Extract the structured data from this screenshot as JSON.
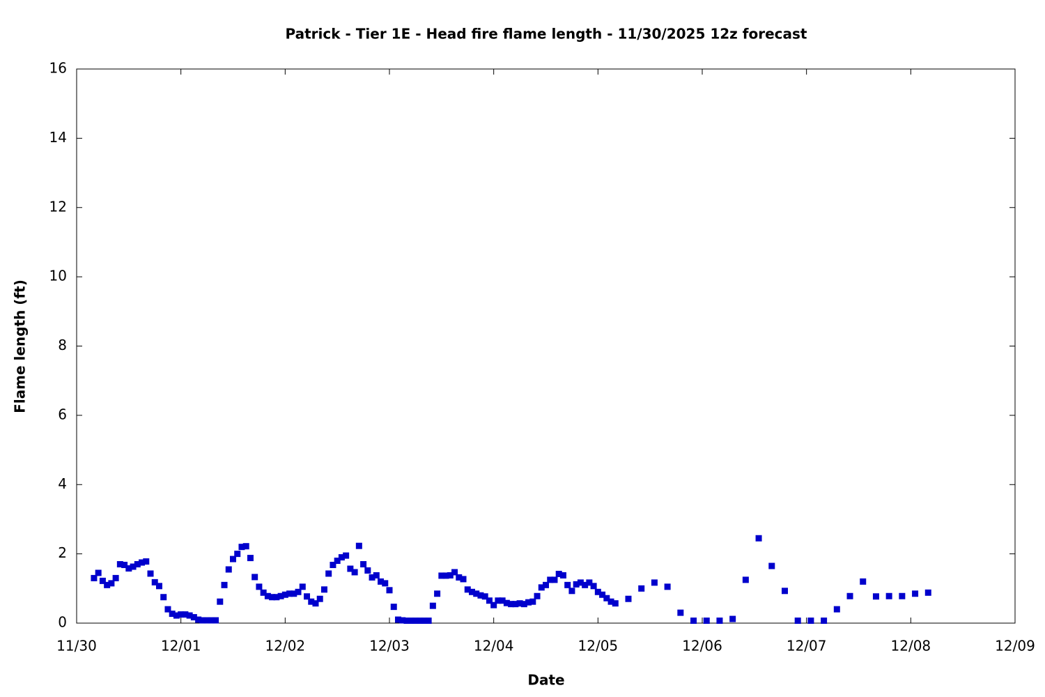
{
  "chart_data": {
    "type": "scatter",
    "title": "Patrick - Tier 1E - Head fire flame length - 11/30/2025 12z forecast",
    "x_label": "Date",
    "y_label": "Flame length (ft)",
    "color": "#0000cc",
    "grid": false,
    "xlim": [
      0,
      216
    ],
    "xticks": [
      {
        "value": 0,
        "label": "11/30"
      },
      {
        "value": 24,
        "label": "12/01"
      },
      {
        "value": 48,
        "label": "12/02"
      },
      {
        "value": 72,
        "label": "12/03"
      },
      {
        "value": 96,
        "label": "12/04"
      },
      {
        "value": 120,
        "label": "12/05"
      },
      {
        "value": 144,
        "label": "12/06"
      },
      {
        "value": 168,
        "label": "12/07"
      },
      {
        "value": 192,
        "label": "12/08"
      },
      {
        "value": 216,
        "label": "12/09"
      }
    ],
    "ylim": [
      0,
      16
    ],
    "yticks": [
      0,
      2,
      4,
      6,
      8,
      10,
      12,
      14,
      16
    ],
    "x": [
      4,
      5,
      6,
      7,
      8,
      9,
      10,
      11,
      12,
      13,
      14,
      15,
      16,
      17,
      18,
      19,
      20,
      21,
      22,
      23,
      24,
      25,
      26,
      27,
      28,
      29,
      30,
      31,
      32,
      33,
      34,
      35,
      36,
      37,
      38,
      39,
      40,
      41,
      42,
      43,
      44,
      45,
      46,
      47,
      48,
      49,
      50,
      51,
      52,
      53,
      54,
      55,
      56,
      57,
      58,
      59,
      60,
      61,
      62,
      63,
      64,
      65,
      66,
      67,
      68,
      69,
      70,
      71,
      72,
      73,
      74,
      75,
      76,
      77,
      78,
      79,
      80,
      81,
      82,
      83,
      84,
      85,
      86,
      87,
      88,
      89,
      90,
      91,
      92,
      93,
      94,
      95,
      96,
      97,
      98,
      99,
      100,
      101,
      102,
      103,
      104,
      105,
      106,
      107,
      108,
      109,
      110,
      111,
      112,
      113,
      114,
      115,
      116,
      117,
      118,
      119,
      120,
      121,
      122,
      123,
      124,
      127,
      130,
      133,
      136,
      139,
      142,
      145,
      148,
      151,
      154,
      157,
      160,
      163,
      166,
      169,
      172,
      175,
      178,
      181,
      184,
      187,
      190,
      193,
      196
    ],
    "values": [
      1.3,
      1.45,
      1.22,
      1.1,
      1.15,
      1.3,
      1.7,
      1.68,
      1.58,
      1.63,
      1.7,
      1.75,
      1.78,
      1.43,
      1.18,
      1.07,
      0.75,
      0.4,
      0.27,
      0.22,
      0.25,
      0.25,
      0.22,
      0.17,
      0.1,
      0.08,
      0.08,
      0.08,
      0.08,
      0.62,
      1.1,
      1.55,
      1.85,
      2.0,
      2.2,
      2.22,
      1.88,
      1.33,
      1.05,
      0.88,
      0.78,
      0.75,
      0.75,
      0.78,
      0.82,
      0.85,
      0.85,
      0.9,
      1.05,
      0.77,
      0.62,
      0.57,
      0.7,
      0.97,
      1.43,
      1.68,
      1.8,
      1.9,
      1.95,
      1.57,
      1.47,
      2.23,
      1.7,
      1.52,
      1.32,
      1.38,
      1.2,
      1.15,
      0.95,
      0.47,
      0.1,
      0.08,
      0.07,
      0.07,
      0.07,
      0.07,
      0.07,
      0.07,
      0.5,
      0.85,
      1.37,
      1.37,
      1.38,
      1.47,
      1.32,
      1.27,
      0.97,
      0.9,
      0.85,
      0.8,
      0.77,
      0.65,
      0.52,
      0.65,
      0.65,
      0.58,
      0.55,
      0.55,
      0.57,
      0.55,
      0.6,
      0.62,
      0.78,
      1.03,
      1.1,
      1.25,
      1.25,
      1.42,
      1.38,
      1.1,
      0.93,
      1.12,
      1.17,
      1.1,
      1.17,
      1.07,
      0.9,
      0.82,
      0.72,
      0.62,
      0.57,
      0.7,
      1.0,
      1.17,
      1.05,
      0.3,
      0.07,
      0.07,
      0.07,
      0.12,
      1.25,
      2.45,
      1.65,
      0.93,
      0.07,
      0.07,
      0.07,
      0.4,
      0.78,
      1.2,
      0.77,
      0.78,
      0.78,
      0.85,
      0.88
    ]
  }
}
